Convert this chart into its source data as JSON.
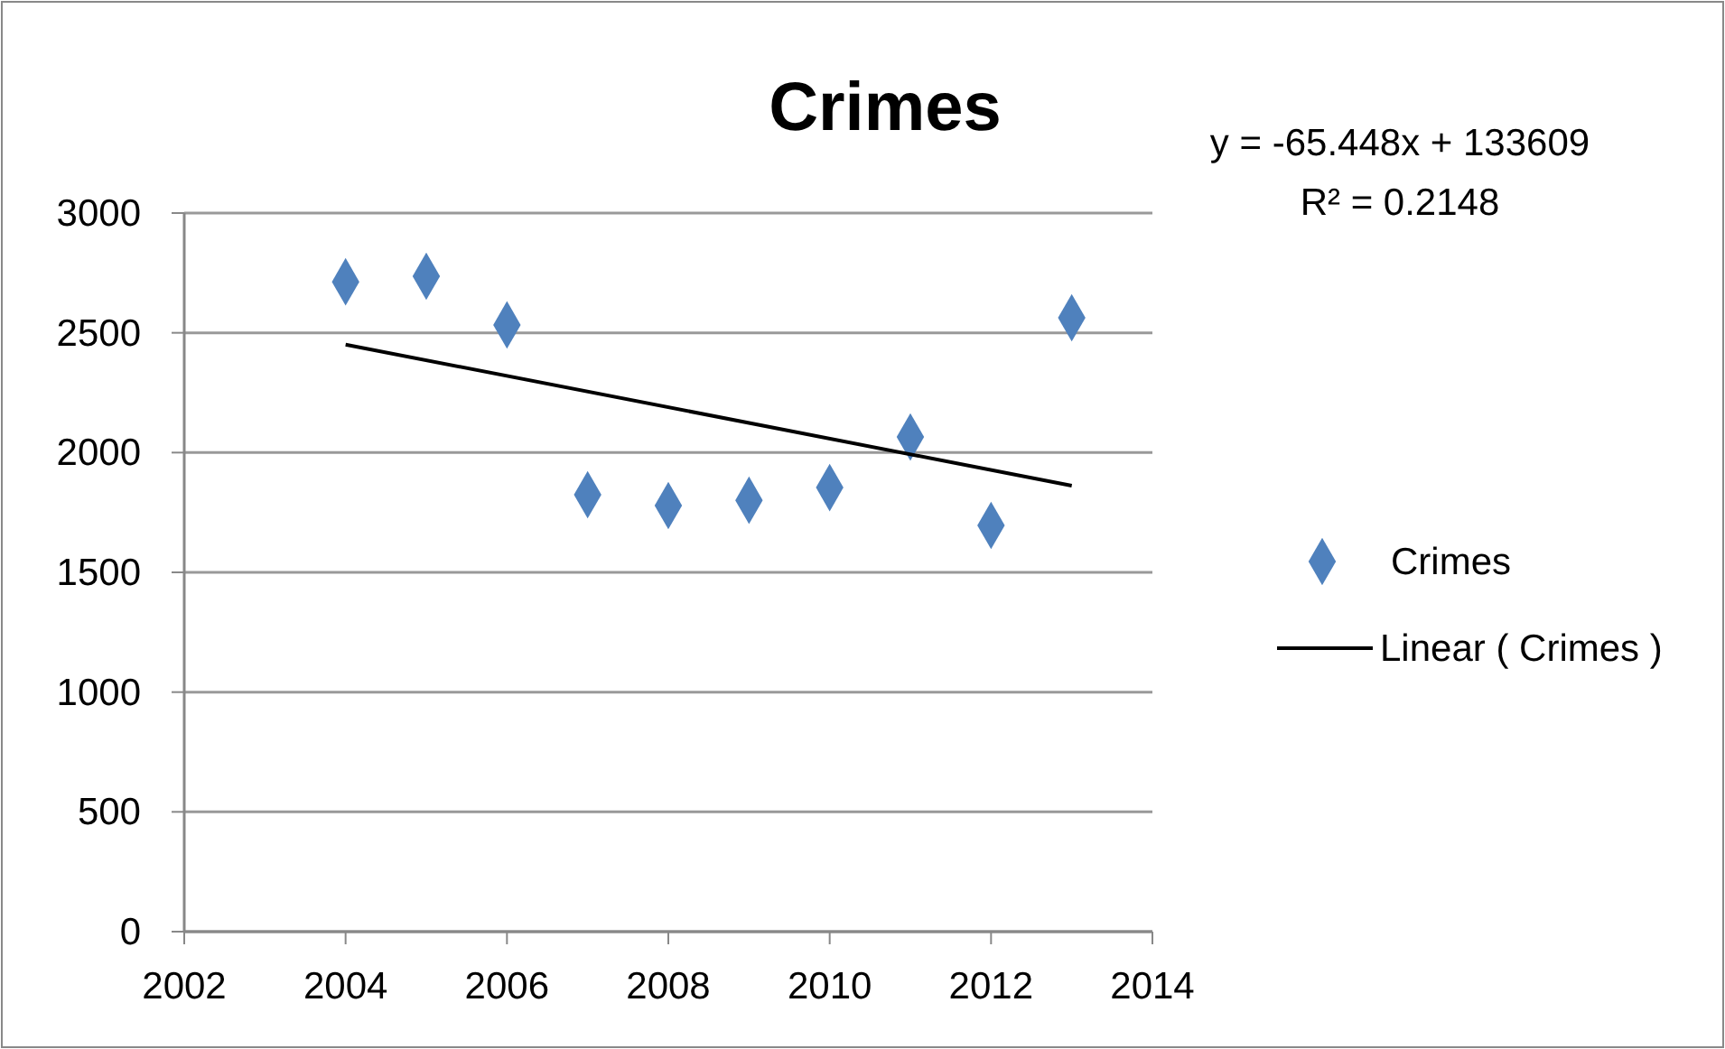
{
  "chart_data": {
    "type": "scatter",
    "title": "Crimes",
    "annotations": [
      "y = -65.448x + 133609",
      "R² = 0.2148"
    ],
    "xlim": [
      2002,
      2014
    ],
    "xticks": [
      2002,
      2004,
      2006,
      2008,
      2010,
      2012,
      2014
    ],
    "ylim": [
      0,
      3000
    ],
    "yticks": [
      0,
      500,
      1000,
      1500,
      2000,
      2500,
      3000
    ],
    "grid": "y",
    "legend": "right",
    "marker": "diamond",
    "series": [
      {
        "name": "Crimes",
        "color": "#4f81bd",
        "x": [
          2004,
          2005,
          2006,
          2007,
          2008,
          2009,
          2010,
          2011,
          2012,
          2013
        ],
        "values": [
          2713,
          2736,
          2533,
          1824,
          1779,
          1801,
          1854,
          2065,
          1696,
          2563
        ]
      },
      {
        "name": "Linear ( Crimes )",
        "type": "line",
        "color": "#000000",
        "line_style": "solid",
        "marker": "none",
        "x": [
          2004,
          2013
        ],
        "values": [
          2451,
          1862
        ]
      }
    ]
  }
}
